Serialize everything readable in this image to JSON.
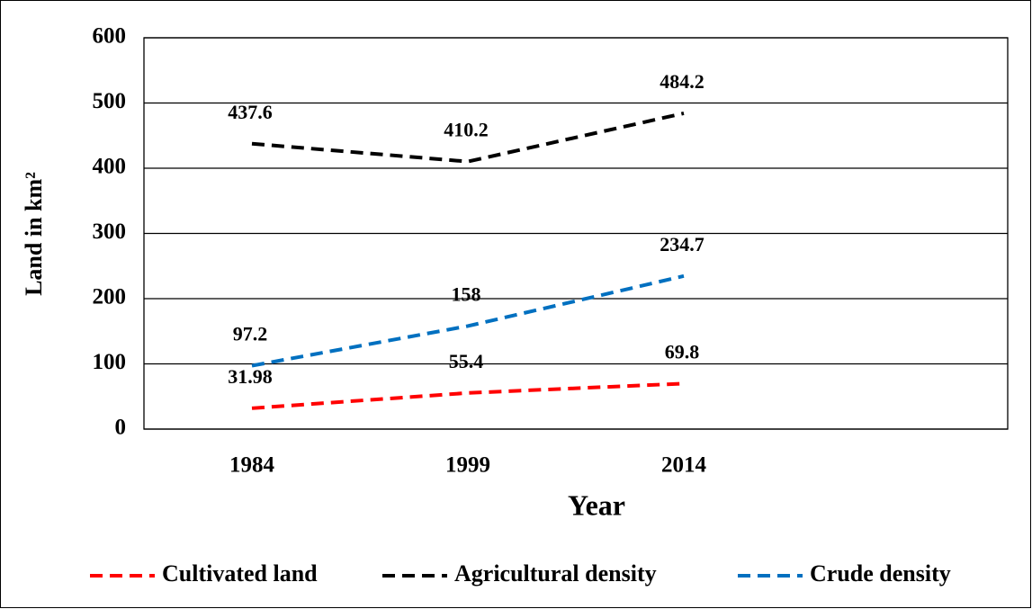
{
  "chart_data": {
    "type": "line",
    "x_label": "Year",
    "y_label": "Land in km²",
    "categories": [
      "1984",
      "1999",
      "2014",
      null
    ],
    "series": [
      {
        "name": "Cultivated land",
        "color": "#ff0000",
        "values": [
          31.98,
          55.4,
          69.8,
          null
        ]
      },
      {
        "name": "Agricultural density",
        "color": "#000000",
        "values": [
          437.6,
          410.2,
          484.2,
          null
        ]
      },
      {
        "name": "Crude density",
        "color": "#0070c0",
        "values": [
          97.2,
          158,
          234.7,
          null
        ]
      }
    ],
    "ylim": [
      0,
      600
    ],
    "yticks": [
      0,
      100,
      200,
      300,
      400,
      500,
      600
    ],
    "grid": true,
    "legend": "bottom"
  }
}
